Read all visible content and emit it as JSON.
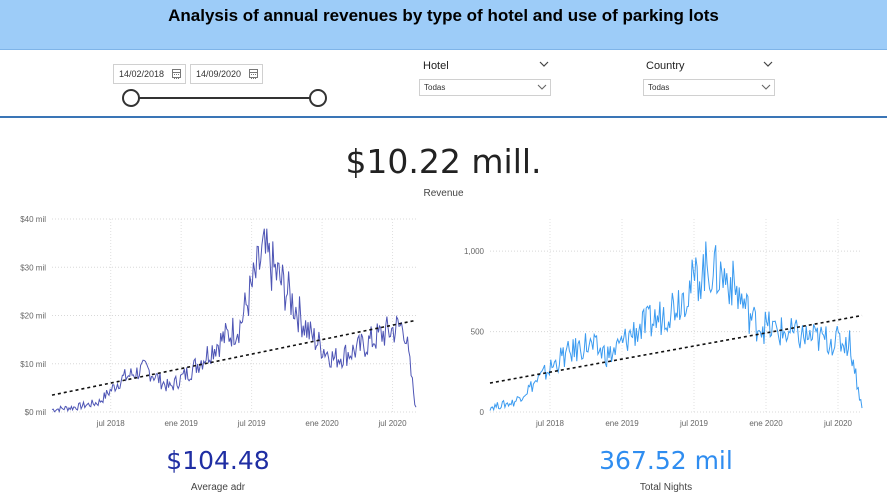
{
  "header": {
    "title": "Analysis of annual revenues by type of hotel and use of parking lots"
  },
  "filters": {
    "date_start": "14/02/2018",
    "date_end": "14/09/2020",
    "hotel": {
      "label": "Hotel",
      "value": "Todas"
    },
    "country": {
      "label": "Country",
      "value": "Todas"
    }
  },
  "kpis": {
    "revenue": {
      "value": "$10.22 mill.",
      "label": "Revenue"
    },
    "adr": {
      "value": "$104.48",
      "label": "Average adr",
      "color": "#1f2ea3"
    },
    "nights": {
      "value": "367.52 mil",
      "label": "Total Nights",
      "color": "#2f8df0"
    }
  },
  "chart_data": [
    {
      "type": "line",
      "series_color": "#4e55b5",
      "trendline": true,
      "x_range": [
        "2018-02",
        "2020-09"
      ],
      "x_ticks": [
        "jul 2018",
        "ene 2019",
        "jul 2019",
        "ene 2020",
        "jul 2020"
      ],
      "y_ticks": [
        "$0 mil",
        "$10 mil",
        "$20 mil",
        "$30 mil",
        "$40 mil"
      ],
      "ylim": [
        0,
        40
      ],
      "grid": true,
      "x": [
        "2018-02",
        "2018-04",
        "2018-06",
        "2018-08",
        "2018-10",
        "2018-12",
        "2019-02",
        "2019-04",
        "2019-06",
        "2019-08",
        "2019-10",
        "2019-12",
        "2020-02",
        "2020-04",
        "2020-06",
        "2020-08",
        "2020-09"
      ],
      "values": [
        0.5,
        1,
        2,
        7,
        9,
        5,
        9,
        14,
        18,
        33,
        25,
        16,
        11,
        13,
        16,
        18,
        0.5
      ],
      "trend": [
        3.5,
        19
      ]
    },
    {
      "type": "line",
      "series_color": "#3b9bf0",
      "trendline": true,
      "x_range": [
        "2018-02",
        "2020-09"
      ],
      "x_ticks": [
        "jul 2018",
        "ene 2019",
        "jul 2019",
        "ene 2020",
        "jul 2020"
      ],
      "y_ticks": [
        "0",
        "500",
        "1,000"
      ],
      "ylim": [
        0,
        1200
      ],
      "grid": true,
      "x": [
        "2018-02",
        "2018-04",
        "2018-06",
        "2018-08",
        "2018-10",
        "2018-12",
        "2019-02",
        "2019-04",
        "2019-06",
        "2019-08",
        "2019-10",
        "2019-12",
        "2020-02",
        "2020-04",
        "2020-06",
        "2020-08",
        "2020-09"
      ],
      "values": [
        30,
        60,
        200,
        340,
        420,
        350,
        500,
        580,
        720,
        900,
        820,
        560,
        500,
        470,
        450,
        430,
        20
      ],
      "trend": [
        180,
        600
      ]
    }
  ]
}
